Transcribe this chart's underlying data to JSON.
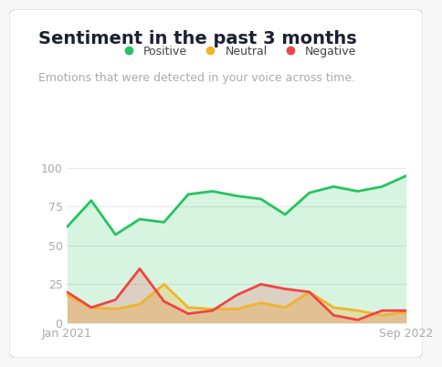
{
  "title": "Sentiment in the past 3 months",
  "subtitle": "Emotions that were detected in your voice across time.",
  "title_color": "#1c2033",
  "subtitle_color": "#aaaaaa",
  "background_color": "#f7f7f8",
  "plot_bg_color": "#ffffff",
  "x_labels": [
    "Jan 2021",
    "Sep 2022"
  ],
  "ylim": [
    0,
    108
  ],
  "yticks": [
    0,
    25,
    50,
    75,
    100
  ],
  "positive_color": "#22c55e",
  "positive_fill_alpha": 0.18,
  "neutral_color": "#f0b429",
  "neutral_fill_alpha": 0.3,
  "negative_color": "#ef4444",
  "negative_fill_alpha": 0.2,
  "positive_values": [
    62,
    79,
    57,
    67,
    65,
    83,
    85,
    82,
    80,
    70,
    84,
    88,
    85,
    88,
    95
  ],
  "neutral_values": [
    18,
    10,
    9,
    12,
    25,
    10,
    9,
    9,
    13,
    10,
    20,
    10,
    8,
    5,
    7
  ],
  "negative_values": [
    20,
    10,
    15,
    35,
    14,
    6,
    8,
    18,
    25,
    22,
    20,
    5,
    2,
    8,
    8
  ],
  "n_points": 15,
  "legend_labels": [
    "Positive",
    "Neutral",
    "Negative"
  ],
  "legend_colors": [
    "#22c55e",
    "#f0b429",
    "#ef4444"
  ],
  "grid_color": "#e8e8e8",
  "tick_color": "#aaaaaa",
  "tick_fontsize": 9,
  "title_fontsize": 14,
  "subtitle_fontsize": 9,
  "linewidth": 2.0
}
